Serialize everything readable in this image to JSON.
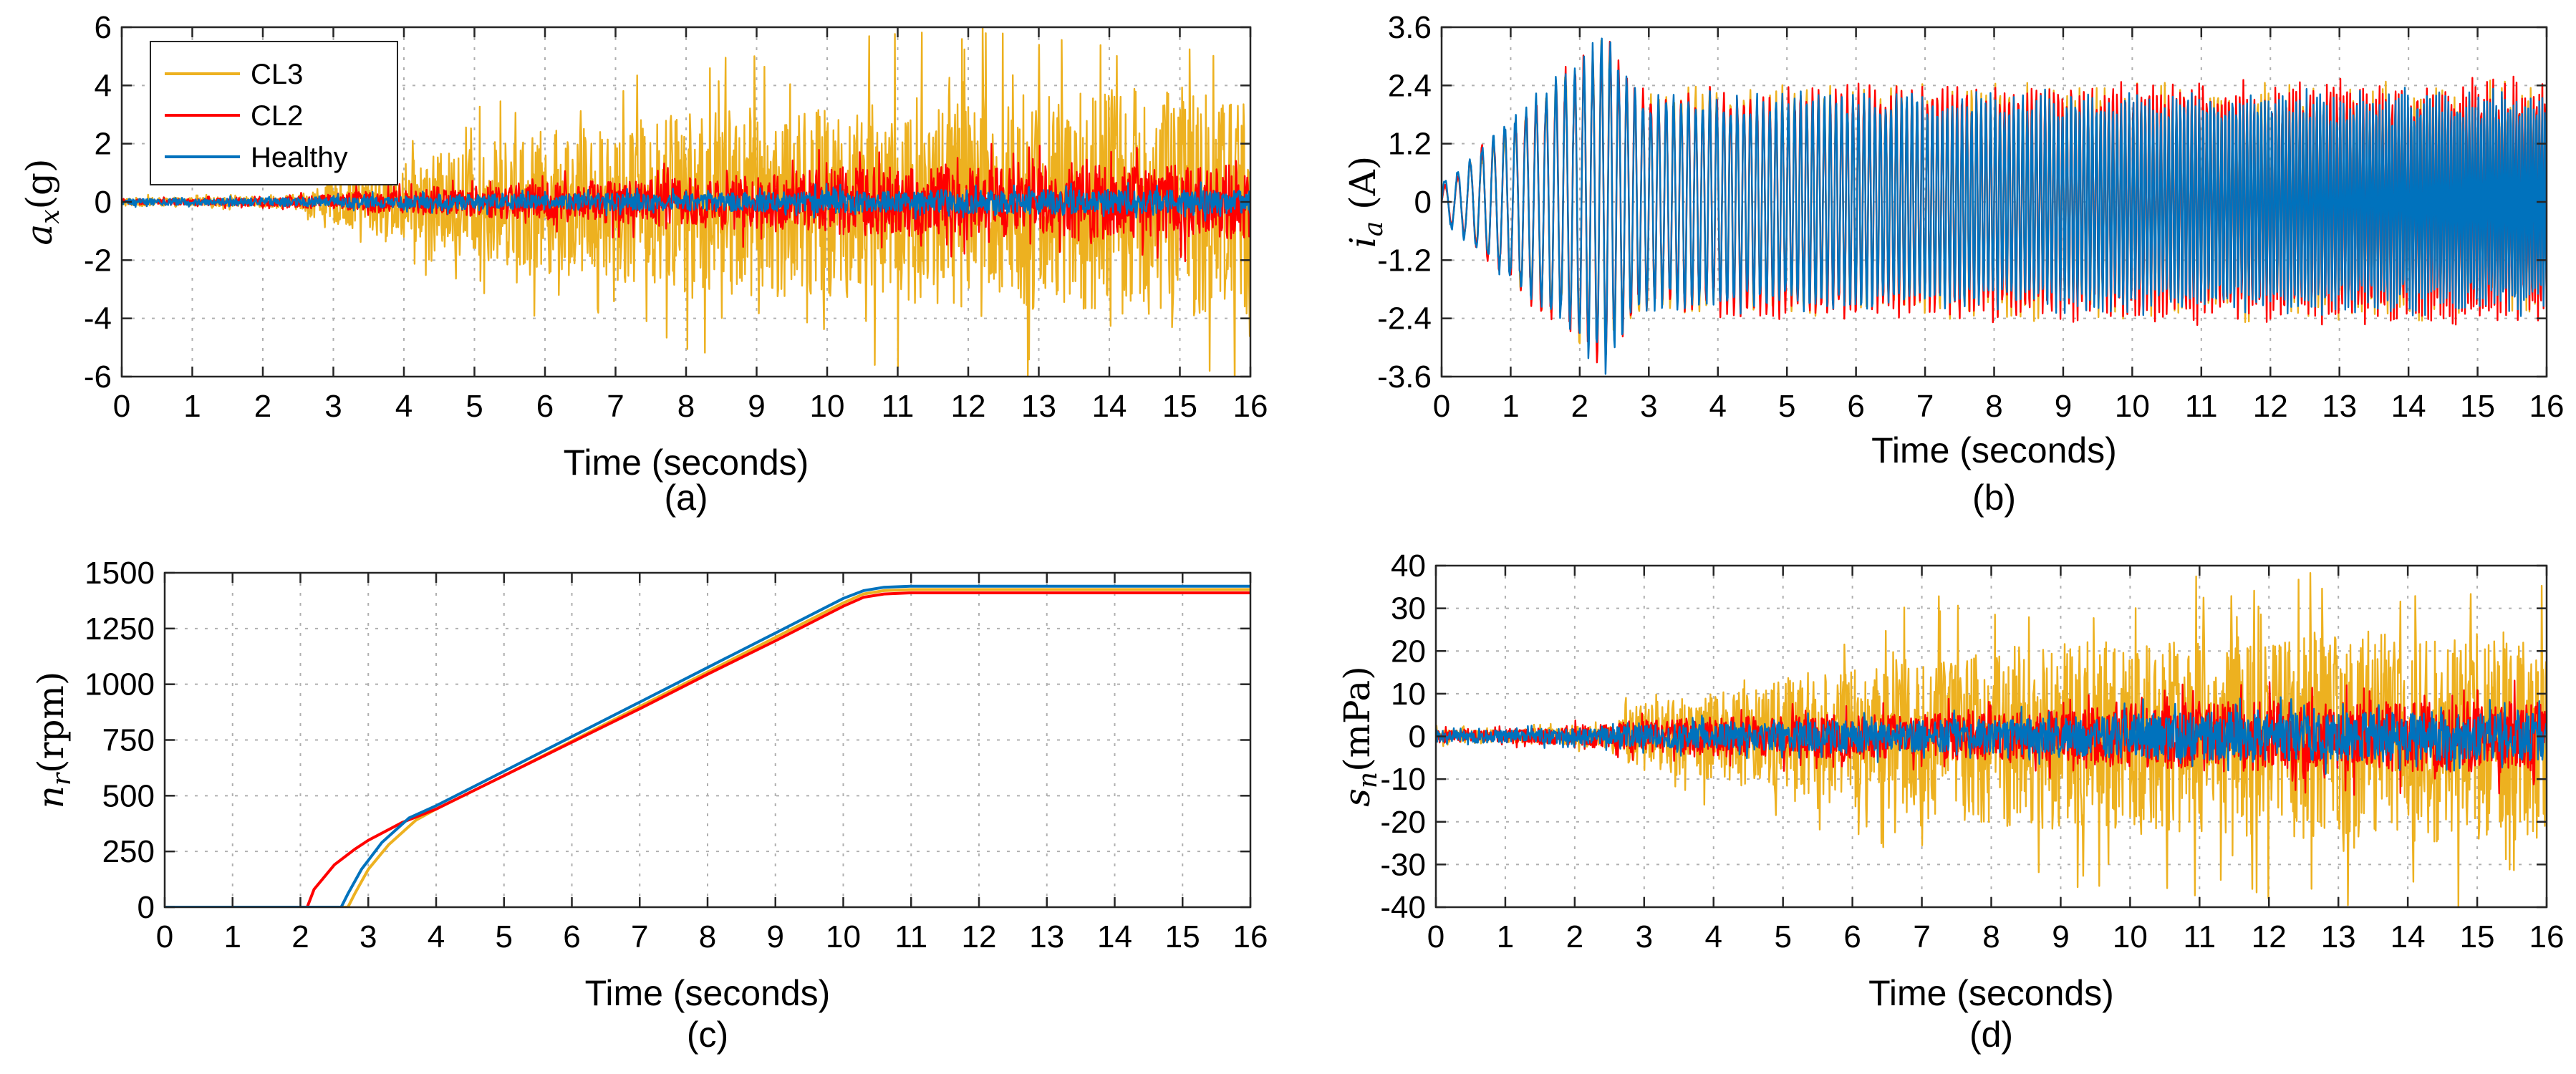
{
  "chart_data": [
    {
      "type": "line",
      "caption": "(a)",
      "xlabel": "Time (seconds)",
      "ylabel": "a_x(g)",
      "ylabel_main": "a",
      "ylabel_sub": "x",
      "ylabel_unit": "(g)",
      "xlim": [
        0,
        16
      ],
      "ylim": [
        -6,
        6
      ],
      "xticks": [
        "0",
        "1",
        "2",
        "3",
        "4",
        "5",
        "6",
        "7",
        "8",
        "9",
        "10",
        "11",
        "12",
        "13",
        "14",
        "15",
        "16"
      ],
      "yticks": [
        "-6",
        "-4",
        "-2",
        "0",
        "2",
        "4",
        "6"
      ],
      "grid": true,
      "legend": {
        "location": "top-left",
        "entries": [
          "CL3",
          "CL2",
          "Healthy"
        ]
      },
      "series": [
        {
          "name": "CL3",
          "color": "#EDB120",
          "envelope_t": [
            0,
            1,
            2,
            2.5,
            3,
            4,
            5,
            6,
            7,
            8,
            9,
            10,
            11,
            12,
            13,
            14,
            15,
            16
          ],
          "envelope_amp": [
            0.2,
            0.2,
            0.25,
            0.35,
            1.0,
            1.8,
            2.6,
            3.3,
            3.6,
            4.2,
            4.4,
            4.4,
            4.8,
            5.0,
            5.0,
            5.2,
            5.2,
            5.2
          ]
        },
        {
          "name": "CL2",
          "color": "#FF0000",
          "envelope_t": [
            0,
            1,
            2,
            2.5,
            3,
            4,
            5,
            6,
            7,
            8,
            9,
            10,
            11,
            12,
            13,
            14,
            15,
            16
          ],
          "envelope_amp": [
            0.12,
            0.15,
            0.2,
            0.25,
            0.4,
            0.55,
            0.7,
            0.85,
            1.0,
            1.1,
            1.3,
            1.5,
            1.6,
            1.6,
            1.6,
            1.7,
            1.7,
            1.7
          ]
        },
        {
          "name": "Healthy",
          "color": "#0072BD",
          "envelope_t": [
            0,
            1,
            2,
            2.5,
            3,
            4,
            5,
            6,
            7,
            8,
            9,
            10,
            11,
            12,
            13,
            14,
            15,
            16
          ],
          "envelope_amp": [
            0.15,
            0.15,
            0.18,
            0.2,
            0.25,
            0.3,
            0.35,
            0.35,
            0.4,
            0.4,
            0.45,
            0.5,
            0.5,
            0.55,
            0.55,
            0.55,
            0.55,
            0.55
          ]
        }
      ]
    },
    {
      "type": "line",
      "caption": "(b)",
      "xlabel": "Time (seconds)",
      "ylabel": "i_a (A)",
      "ylabel_main": "i",
      "ylabel_sub": "a",
      "ylabel_unit": " (A)",
      "xlim": [
        0,
        16
      ],
      "ylim": [
        -3.6,
        3.6
      ],
      "xticks": [
        "0",
        "1",
        "2",
        "3",
        "4",
        "5",
        "6",
        "7",
        "8",
        "9",
        "10",
        "11",
        "12",
        "13",
        "14",
        "15",
        "16"
      ],
      "yticks": [
        "-3.6",
        "-2.4",
        "-1.2",
        "0",
        "1.2",
        "2.4",
        "3.6"
      ],
      "grid": true,
      "series": [
        {
          "name": "CL3",
          "color": "#EDB120",
          "envelope_t": [
            0,
            0.3,
            0.6,
            1,
            1.5,
            2,
            2.4,
            2.7,
            3,
            4,
            16
          ],
          "envelope_amp": [
            0.3,
            0.6,
            1.0,
            1.5,
            2.2,
            2.8,
            3.3,
            2.4,
            2.1,
            2.2,
            2.3
          ]
        },
        {
          "name": "CL2",
          "color": "#FF0000",
          "envelope_t": [
            0,
            0.3,
            0.6,
            1,
            1.5,
            2,
            2.4,
            2.7,
            3,
            4,
            16
          ],
          "envelope_amp": [
            0.3,
            0.6,
            1.1,
            1.6,
            2.2,
            2.8,
            3.2,
            2.4,
            2.1,
            2.2,
            2.4
          ]
        },
        {
          "name": "Healthy",
          "color": "#0072BD",
          "envelope_t": [
            0,
            0.3,
            0.6,
            1,
            1.5,
            2,
            2.4,
            2.7,
            3,
            4,
            16
          ],
          "envelope_amp": [
            0.4,
            0.7,
            1.1,
            1.6,
            2.2,
            2.9,
            3.4,
            2.4,
            2.1,
            2.1,
            2.2
          ]
        }
      ]
    },
    {
      "type": "line",
      "caption": "(c)",
      "xlabel": "Time (seconds)",
      "ylabel": "n_r(rpm)",
      "ylabel_main": "n",
      "ylabel_sub": "r",
      "ylabel_unit": "(rpm)",
      "xlim": [
        0,
        16
      ],
      "ylim": [
        0,
        1500
      ],
      "xticks": [
        "0",
        "1",
        "2",
        "3",
        "4",
        "5",
        "6",
        "7",
        "8",
        "9",
        "10",
        "11",
        "12",
        "13",
        "14",
        "15",
        "16"
      ],
      "yticks": [
        "0",
        "250",
        "500",
        "750",
        "1000",
        "1250",
        "1500"
      ],
      "grid": true,
      "series": [
        {
          "name": "CL3",
          "color": "#EDB120",
          "x": [
            0,
            2.7,
            2.8,
            3.0,
            3.3,
            3.7,
            4,
            5,
            6,
            7,
            8,
            9,
            10,
            10.3,
            10.6,
            11,
            16
          ],
          "y": [
            0,
            0,
            60,
            170,
            280,
            390,
            440,
            590,
            745,
            900,
            1055,
            1210,
            1365,
            1405,
            1420,
            1425,
            1425
          ]
        },
        {
          "name": "CL2",
          "color": "#FF0000",
          "x": [
            0,
            2.1,
            2.2,
            2.5,
            2.8,
            3.0,
            3.5,
            4,
            5,
            6,
            7,
            8,
            9,
            10,
            10.3,
            10.6,
            11,
            16
          ],
          "y": [
            0,
            0,
            80,
            190,
            260,
            300,
            380,
            440,
            590,
            740,
            890,
            1045,
            1195,
            1350,
            1390,
            1405,
            1410,
            1410
          ]
        },
        {
          "name": "Healthy",
          "color": "#0072BD",
          "x": [
            0,
            2.6,
            2.7,
            2.9,
            3.2,
            3.6,
            4,
            5,
            6,
            7,
            8,
            9,
            10,
            10.3,
            10.6,
            11,
            16
          ],
          "y": [
            0,
            0,
            60,
            170,
            290,
            400,
            455,
            610,
            765,
            920,
            1075,
            1230,
            1385,
            1420,
            1435,
            1440,
            1440
          ]
        }
      ]
    },
    {
      "type": "line",
      "caption": "(d)",
      "xlabel": "Time (seconds)",
      "ylabel": "s_n(mPa)",
      "ylabel_main": "s",
      "ylabel_sub": "n",
      "ylabel_unit": "(mPa)",
      "xlim": [
        0,
        16
      ],
      "ylim": [
        -40,
        40
      ],
      "xticks": [
        "0",
        "1",
        "2",
        "3",
        "4",
        "5",
        "6",
        "7",
        "8",
        "9",
        "10",
        "11",
        "12",
        "13",
        "14",
        "15",
        "16"
      ],
      "yticks": [
        "-40",
        "-30",
        "-20",
        "-10",
        "0",
        "10",
        "20",
        "30",
        "40"
      ],
      "grid": true,
      "series": [
        {
          "name": "CL3",
          "color": "#EDB120",
          "envelope_t": [
            0,
            1,
            2,
            2.6,
            2.8,
            4,
            5,
            6,
            7,
            8,
            9,
            10,
            11,
            12,
            13,
            14,
            15,
            16
          ],
          "envelope_amp": [
            2,
            2,
            3,
            4,
            10,
            14,
            18,
            22,
            26,
            28,
            30,
            30,
            30,
            32,
            33,
            33,
            33,
            33
          ]
        },
        {
          "name": "CL2",
          "color": "#FF0000",
          "envelope_t": [
            0,
            1,
            2,
            2.6,
            2.8,
            4,
            5,
            6,
            7,
            8,
            9,
            10,
            11,
            12,
            13,
            14,
            15,
            16
          ],
          "envelope_amp": [
            2,
            2,
            3,
            4,
            5,
            6,
            6.5,
            7,
            7,
            7.5,
            8,
            10,
            11,
            11,
            11,
            11,
            11,
            11
          ]
        },
        {
          "name": "Healthy",
          "color": "#0072BD",
          "envelope_t": [
            0,
            1,
            2,
            2.6,
            2.8,
            4,
            5,
            6,
            7,
            8,
            9,
            10,
            11,
            12,
            13,
            14,
            15,
            16
          ],
          "envelope_amp": [
            2,
            2,
            2.5,
            3,
            3.5,
            4,
            4.5,
            5,
            5,
            5.5,
            6,
            7,
            7.5,
            7.5,
            7.5,
            7.5,
            7.5,
            7.5
          ]
        }
      ]
    }
  ]
}
